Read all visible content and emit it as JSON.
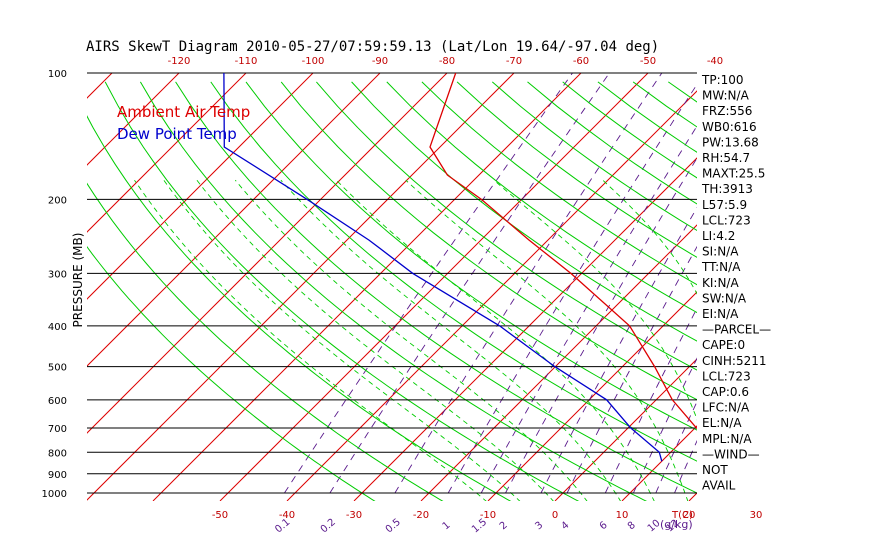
{
  "chart_data": {
    "type": "line",
    "title": "AIRS SkewT Diagram 2010-05-27/07:59:59.13 (Lat/Lon 19.64/-97.04 deg)",
    "ylabel": "PRESSURE (MB)",
    "xlabel_right": "T(C)",
    "mixing_unit_label": "(g/kg)",
    "y_scale": "log",
    "ylim": [
      1050,
      100
    ],
    "pressure_ticks": [
      100,
      200,
      300,
      400,
      500,
      600,
      700,
      800,
      900,
      1000
    ],
    "temp_ticks_bottom": [
      -50,
      -40,
      -30,
      -20,
      -10,
      0,
      10,
      20,
      30
    ],
    "temp_ticks_top": [
      -120,
      -110,
      -100,
      -90,
      -80,
      -70,
      -60,
      -50,
      -40
    ],
    "mixing_ratio_ticks": [
      "0.1",
      "0.2",
      "0.5",
      "1",
      "1.5",
      "2",
      "3",
      "4",
      "6",
      "8",
      "10",
      "12",
      "15",
      "20",
      "25",
      "30",
      "40"
    ],
    "legend": [
      {
        "name": "Ambient Air Temp",
        "color": "#dd0000"
      },
      {
        "name": "Dew Point Temp",
        "color": "#0000cc"
      }
    ],
    "series": [
      {
        "name": "Ambient Air Temp",
        "color": "#dd0000",
        "points": [
          {
            "p": 100,
            "t": -78.7
          },
          {
            "p": 150,
            "t": -71.5
          },
          {
            "p": 175,
            "t": -64.7
          },
          {
            "p": 200,
            "t": -56.0
          },
          {
            "p": 250,
            "t": -42.8
          },
          {
            "p": 300,
            "t": -31.6
          },
          {
            "p": 400,
            "t": -15.0
          },
          {
            "p": 500,
            "t": -5.2
          },
          {
            "p": 600,
            "t": 2.4
          },
          {
            "p": 700,
            "t": 10.2
          },
          {
            "p": 800,
            "t": 18.8
          },
          {
            "p": 832,
            "t": 20.9
          }
        ]
      },
      {
        "name": "Dew Point Temp",
        "color": "#0000cc",
        "points": [
          {
            "p": 100,
            "t": -113.3
          },
          {
            "p": 150,
            "t": -102.2
          },
          {
            "p": 200,
            "t": -82.0
          },
          {
            "p": 250,
            "t": -66.7
          },
          {
            "p": 300,
            "t": -55.2
          },
          {
            "p": 400,
            "t": -34.4
          },
          {
            "p": 500,
            "t": -20.1
          },
          {
            "p": 600,
            "t": -7.4
          },
          {
            "p": 700,
            "t": 0.4
          },
          {
            "p": 800,
            "t": 8.3
          },
          {
            "p": 840,
            "t": 10.0
          }
        ]
      }
    ],
    "side_panel": [
      "TP:100",
      "MW:N/A",
      "FRZ:556",
      "WB0:616",
      "PW:13.68",
      "RH:54.7",
      "MAXT:25.5",
      "TH:3913",
      "L57:5.9",
      "LCL:723",
      "LI:4.2",
      "SI:N/A",
      "TT:N/A",
      "KI:N/A",
      "SW:N/A",
      "EI:N/A",
      "—PARCEL—",
      "CAPE:0",
      "CINH:5211",
      "LCL:723",
      "CAP:0.6",
      "LFC:N/A",
      "EL:N/A",
      "MPL:N/A",
      "—WIND—",
      "NOT",
      "AVAIL"
    ],
    "colors": {
      "isotherm": "#dd0000",
      "dry_adiabat": "#00cc00",
      "mixing_ratio": "#5a1a8c",
      "moist_adiabat": "#00cc00",
      "isobar": "#000000"
    }
  }
}
